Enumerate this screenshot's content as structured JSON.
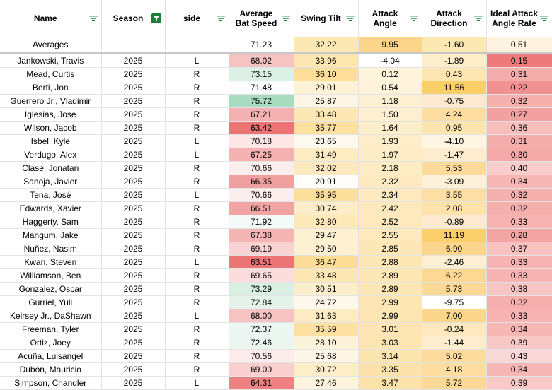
{
  "headers": [
    {
      "label1": "Name",
      "label2": "",
      "filter_active": false
    },
    {
      "label1": "Season",
      "label2": "",
      "filter_active": true
    },
    {
      "label1": "side",
      "label2": "",
      "filter_active": false
    },
    {
      "label1": "Average",
      "label2": "Bat Speed",
      "filter_active": false
    },
    {
      "label1": "Swing Tilt",
      "label2": "",
      "filter_active": false
    },
    {
      "label1": "Attack",
      "label2": "Angle",
      "filter_active": false
    },
    {
      "label1": "Attack",
      "label2": "Direction",
      "filter_active": false
    },
    {
      "label1": "Ideal Attack",
      "label2": "Angle Rate",
      "filter_active": false
    }
  ],
  "averages": {
    "label": "Averages",
    "season": "",
    "side": "",
    "bat_speed": "71.23",
    "swing_tilt": "32.22",
    "attack_angle": "9.95",
    "attack_direction": "-1.60",
    "ideal_rate": "0.51"
  },
  "colors": {
    "grid": "#e2e3e3",
    "header_filter_green": "#188038",
    "avg_swing_tilt": "#fce8b2",
    "avg_attack_angle": "#fcd48a",
    "avg_attack_direction": "#fce8b2",
    "avg_ideal_rate": "#fdf3e0"
  },
  "rows": [
    {
      "name": "Jankowski, Travis",
      "season": "2025",
      "side": "L",
      "bat_speed": "68.02",
      "swing_tilt": "33.96",
      "attack_angle": "-4.04",
      "attack_direction": "-1.89",
      "ideal_rate": "0.15",
      "c_bs": "#f6c3c3",
      "c_st": "#fde6b0",
      "c_aa": "#ffffff",
      "c_ad": "#fdedc9",
      "c_ir": "#ee7a79"
    },
    {
      "name": "Mead, Curtis",
      "season": "2025",
      "side": "R",
      "bat_speed": "73.15",
      "swing_tilt": "36.10",
      "attack_angle": "0.12",
      "attack_direction": "0.43",
      "ideal_rate": "0.31",
      "c_bs": "#dcf0e5",
      "c_st": "#fdde99",
      "c_aa": "#fef4dc",
      "c_ad": "#fde6b2",
      "c_ir": "#f5adac"
    },
    {
      "name": "Berti, Jon",
      "season": "2025",
      "side": "R",
      "bat_speed": "71.48",
      "swing_tilt": "29.01",
      "attack_angle": "0.54",
      "attack_direction": "11.56",
      "ideal_rate": "0.22",
      "c_bs": "#fdfdfd",
      "c_st": "#fdf2d6",
      "c_aa": "#fef3da",
      "c_ad": "#fbcf68",
      "c_ir": "#f19191"
    },
    {
      "name": "Guerrero Jr., Vladimir",
      "season": "2025",
      "side": "R",
      "bat_speed": "75.72",
      "swing_tilt": "25.87",
      "attack_angle": "1.18",
      "attack_direction": "-0.75",
      "ideal_rate": "0.32",
      "c_bs": "#a9dbc1",
      "c_st": "#fdf6e6",
      "c_aa": "#fdf0d2",
      "c_ad": "#fdead0",
      "c_ir": "#f5b0ae"
    },
    {
      "name": "Iglesias, Jose",
      "season": "2025",
      "side": "R",
      "bat_speed": "67.21",
      "swing_tilt": "33.48",
      "attack_angle": "1.50",
      "attack_direction": "4.24",
      "ideal_rate": "0.27",
      "c_bs": "#f4b1b1",
      "c_st": "#fde7b4",
      "c_aa": "#fdefd0",
      "c_ad": "#fdddA0",
      "c_ir": "#f3a1a0"
    },
    {
      "name": "Wilson, Jacob",
      "season": "2025",
      "side": "R",
      "bat_speed": "63.42",
      "swing_tilt": "35.77",
      "attack_angle": "1.64",
      "attack_direction": "0.95",
      "ideal_rate": "0.36",
      "c_bs": "#ec7474",
      "c_st": "#fde0a0",
      "c_aa": "#fdeecc",
      "c_ad": "#fde5b0",
      "c_ir": "#f7bebc"
    },
    {
      "name": "Isbel, Kyle",
      "season": "2025",
      "side": "L",
      "bat_speed": "70.18",
      "swing_tilt": "23.65",
      "attack_angle": "1.93",
      "attack_direction": "-4.10",
      "ideal_rate": "0.31",
      "c_bs": "#fce6e6",
      "c_st": "#fef9ef",
      "c_aa": "#fdedc8",
      "c_ad": "#fef5e2",
      "c_ir": "#f5adac"
    },
    {
      "name": "Verdugo, Alex",
      "season": "2025",
      "side": "L",
      "bat_speed": "67.25",
      "swing_tilt": "31.49",
      "attack_angle": "1.97",
      "attack_direction": "-1.47",
      "ideal_rate": "0.30",
      "c_bs": "#f4b2b2",
      "c_st": "#fdebc4",
      "c_aa": "#fdedc7",
      "c_ad": "#fdecce",
      "c_ir": "#f4a9a8"
    },
    {
      "name": "Clase, Jonatan",
      "season": "2025",
      "side": "R",
      "bat_speed": "70.66",
      "swing_tilt": "32.02",
      "attack_angle": "2.18",
      "attack_direction": "5.53",
      "ideal_rate": "0.40",
      "c_bs": "#fdeeee",
      "c_st": "#fde9bf",
      "c_aa": "#fdebc3",
      "c_ad": "#fdd99a",
      "c_ir": "#f8cdcb"
    },
    {
      "name": "Sanoja, Javier",
      "season": "2025",
      "side": "R",
      "bat_speed": "66.35",
      "swing_tilt": "20.91",
      "attack_angle": "2.32",
      "attack_direction": "-3.09",
      "ideal_rate": "0.34",
      "c_bs": "#f1a0a0",
      "c_st": "#fffdf9",
      "c_aa": "#fdeac0",
      "c_ad": "#fef1d9",
      "c_ir": "#f6b7b5"
    },
    {
      "name": "Tena, José",
      "season": "2025",
      "side": "L",
      "bat_speed": "70.66",
      "swing_tilt": "35.95",
      "attack_angle": "2.34",
      "attack_direction": "3.55",
      "ideal_rate": "0.32",
      "c_bs": "#fdeeee",
      "c_st": "#fddf9c",
      "c_aa": "#fdeabf",
      "c_ad": "#fddfa5",
      "c_ir": "#f5b0ae"
    },
    {
      "name": "Edwards, Xavier",
      "season": "2025",
      "side": "R",
      "bat_speed": "66.51",
      "swing_tilt": "30.74",
      "attack_angle": "2.42",
      "attack_direction": "2.08",
      "ideal_rate": "0.32",
      "c_bs": "#f2a4a4",
      "c_st": "#fdeec9",
      "c_aa": "#fde9bd",
      "c_ad": "#fde2aa",
      "c_ir": "#f5b0ae"
    },
    {
      "name": "Haggerty, Sam",
      "season": "2025",
      "side": "R",
      "bat_speed": "71.92",
      "swing_tilt": "32.80",
      "attack_angle": "2.52",
      "attack_direction": "-0.89",
      "ideal_rate": "0.33",
      "c_bs": "#f4faf7",
      "c_st": "#fde8ba",
      "c_aa": "#fde9bc",
      "c_ad": "#fdead0",
      "c_ir": "#f6b3b1"
    },
    {
      "name": "Mangum, Jake",
      "season": "2025",
      "side": "R",
      "bat_speed": "67.38",
      "swing_tilt": "29.47",
      "attack_angle": "2.55",
      "attack_direction": "11.19",
      "ideal_rate": "0.28",
      "c_bs": "#f5b5b5",
      "c_st": "#fdf1d2",
      "c_aa": "#fde9bb",
      "c_ad": "#fbd06c",
      "c_ir": "#f3a5a4"
    },
    {
      "name": "Nuñez, Nasim",
      "season": "2025",
      "side": "R",
      "bat_speed": "69.19",
      "swing_tilt": "29.50",
      "attack_angle": "2.85",
      "attack_direction": "6.90",
      "ideal_rate": "0.37",
      "c_bs": "#f9d3d3",
      "c_st": "#fdf1d2",
      "c_aa": "#fde7b6",
      "c_ad": "#fcd68c",
      "c_ir": "#f7c2c0"
    },
    {
      "name": "Kwan, Steven",
      "season": "2025",
      "side": "L",
      "bat_speed": "63.51",
      "swing_tilt": "36.47",
      "attack_angle": "2.88",
      "attack_direction": "-2.46",
      "ideal_rate": "0.33",
      "c_bs": "#ec7575",
      "c_st": "#fddc95",
      "c_aa": "#fde7b5",
      "c_ad": "#fdefd4",
      "c_ir": "#f6b3b1"
    },
    {
      "name": "Williamson, Ben",
      "season": "2025",
      "side": "R",
      "bat_speed": "69.65",
      "swing_tilt": "33.48",
      "attack_angle": "2.89",
      "attack_direction": "6.22",
      "ideal_rate": "0.33",
      "c_bs": "#fbdddd",
      "c_st": "#fde7b4",
      "c_aa": "#fde7b5",
      "c_ad": "#fdd893",
      "c_ir": "#f6b3b1"
    },
    {
      "name": "Gonzalez, Oscar",
      "season": "2025",
      "side": "R",
      "bat_speed": "73.29",
      "swing_tilt": "30.51",
      "attack_angle": "2.89",
      "attack_direction": "5.73",
      "ideal_rate": "0.38",
      "c_bs": "#d8efe2",
      "c_st": "#fdefcc",
      "c_aa": "#fde7b5",
      "c_ad": "#fdd998",
      "c_ir": "#f7c5c3"
    },
    {
      "name": "Gurriel, Yuli",
      "season": "2025",
      "side": "R",
      "bat_speed": "72.84",
      "swing_tilt": "24.72",
      "attack_angle": "2.99",
      "attack_direction": "-9.75",
      "ideal_rate": "0.32",
      "c_bs": "#e3f3ea",
      "c_st": "#fef8ec",
      "c_aa": "#fde6b3",
      "c_ad": "#ffffff",
      "c_ir": "#f5b0ae"
    },
    {
      "name": "Keirsey Jr., DaShawn",
      "season": "2025",
      "side": "L",
      "bat_speed": "68.00",
      "swing_tilt": "31.63",
      "attack_angle": "2.99",
      "attack_direction": "7.00",
      "ideal_rate": "0.33",
      "c_bs": "#f6c3c3",
      "c_st": "#fdebc3",
      "c_aa": "#fde6b3",
      "c_ad": "#fcd68a",
      "c_ir": "#f6b3b1"
    },
    {
      "name": "Freeman, Tyler",
      "season": "2025",
      "side": "R",
      "bat_speed": "72.37",
      "swing_tilt": "35.59",
      "attack_angle": "3.01",
      "attack_direction": "-0.24",
      "ideal_rate": "0.34",
      "c_bs": "#ecf7f1",
      "c_st": "#fde1a3",
      "c_aa": "#fde6b3",
      "c_ad": "#fde8bf",
      "c_ir": "#f6b7b5"
    },
    {
      "name": "Ortiz, Joey",
      "season": "2025",
      "side": "R",
      "bat_speed": "72.46",
      "swing_tilt": "28.10",
      "attack_angle": "3.03",
      "attack_direction": "-1.44",
      "ideal_rate": "0.39",
      "c_bs": "#eaf6ef",
      "c_st": "#fdf3da",
      "c_aa": "#fde6b2",
      "c_ad": "#fdecce",
      "c_ir": "#f8c9c7"
    },
    {
      "name": "Acuña, Luisangel",
      "season": "2025",
      "side": "R",
      "bat_speed": "70.56",
      "swing_tilt": "25.68",
      "attack_angle": "3.14",
      "attack_direction": "5.02",
      "ideal_rate": "0.43",
      "c_bs": "#fdecec",
      "c_st": "#fdf6e7",
      "c_aa": "#fde5b0",
      "c_ad": "#fddb9d",
      "c_ir": "#fad8d7"
    },
    {
      "name": "Dubón, Mauricio",
      "season": "2025",
      "side": "R",
      "bat_speed": "69.00",
      "swing_tilt": "30.72",
      "attack_angle": "3.35",
      "attack_direction": "4.18",
      "ideal_rate": "0.34",
      "c_bs": "#f9cfcf",
      "c_st": "#fdeec9",
      "c_aa": "#fde3ab",
      "c_ad": "#fdddA0",
      "c_ir": "#f6b7b5"
    },
    {
      "name": "Simpson, Chandler",
      "season": "2025",
      "side": "L",
      "bat_speed": "64.31",
      "swing_tilt": "27.46",
      "attack_angle": "3.47",
      "attack_direction": "5.72",
      "ideal_rate": "0.39",
      "c_bs": "#ee8282",
      "c_st": "#fdf4de",
      "c_aa": "#fde2a9",
      "c_ad": "#fdd998",
      "c_ir": "#f8c9c7"
    }
  ]
}
